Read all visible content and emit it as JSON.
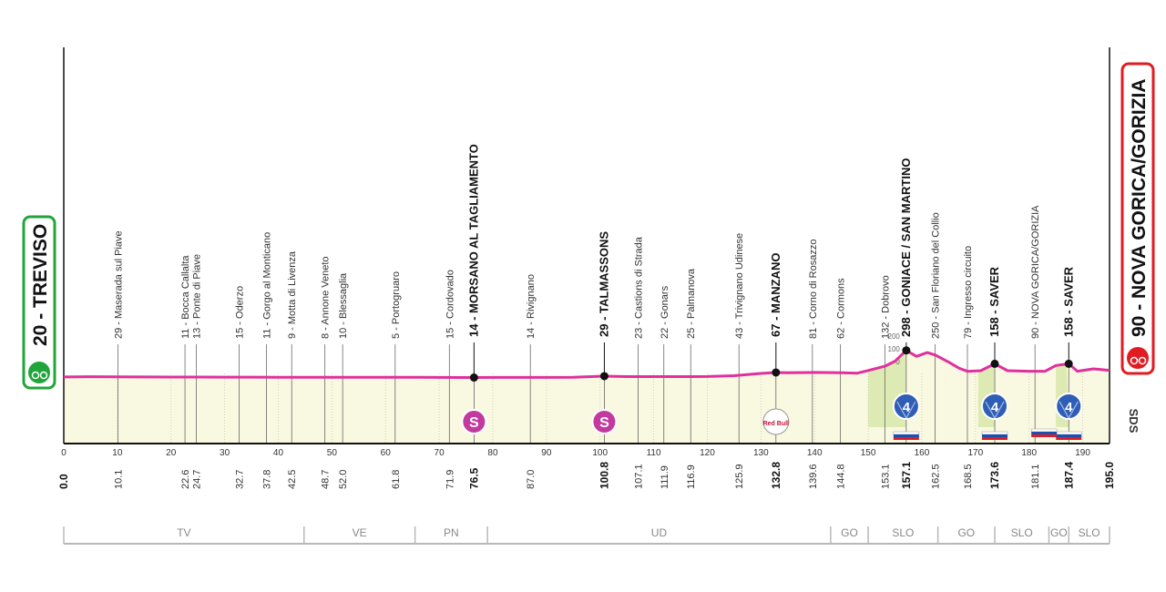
{
  "chart_data": {
    "type": "area",
    "x_unit": "km",
    "xlim": [
      0,
      195
    ],
    "x_ticks": [
      0,
      10,
      20,
      30,
      40,
      50,
      60,
      70,
      80,
      90,
      100,
      110,
      120,
      130,
      140,
      150,
      160,
      170,
      180,
      190
    ],
    "elevation_ticks": [
      "200",
      "100",
      "0"
    ],
    "colors": {
      "profile": "#e0309e",
      "fill": "#f9f8e1",
      "climb_fill": "#dce9b0",
      "finish_border": "#e11b22",
      "start_border": "#21a53a",
      "sprint": "#c23a9e",
      "kom": "#2f5eb7"
    },
    "start": {
      "label": "20 - TREVISO",
      "km": "0.0",
      "elevation": 20
    },
    "finish": {
      "label": "90 - NOVA GORICA/GORIZIA",
      "km": "195.0",
      "elevation": 90
    },
    "profile": [
      [
        0,
        20
      ],
      [
        5,
        23
      ],
      [
        10,
        21
      ],
      [
        15,
        20
      ],
      [
        20,
        19
      ],
      [
        25,
        19
      ],
      [
        30,
        18
      ],
      [
        35,
        18
      ],
      [
        40,
        17
      ],
      [
        45,
        17
      ],
      [
        50,
        17
      ],
      [
        55,
        17
      ],
      [
        60,
        16
      ],
      [
        65,
        16
      ],
      [
        70,
        15
      ],
      [
        76.5,
        14
      ],
      [
        80,
        15
      ],
      [
        85,
        15
      ],
      [
        90,
        15
      ],
      [
        95,
        17
      ],
      [
        100.8,
        29
      ],
      [
        105,
        24
      ],
      [
        110,
        24
      ],
      [
        115,
        24
      ],
      [
        120,
        25
      ],
      [
        125,
        33
      ],
      [
        130,
        57
      ],
      [
        132.8,
        67
      ],
      [
        135,
        64
      ],
      [
        140,
        68
      ],
      [
        145,
        64
      ],
      [
        148,
        60
      ],
      [
        150,
        88
      ],
      [
        153.1,
        132
      ],
      [
        155,
        185
      ],
      [
        157.1,
        298
      ],
      [
        159,
        235
      ],
      [
        161,
        275
      ],
      [
        162.5,
        250
      ],
      [
        165,
        175
      ],
      [
        167,
        110
      ],
      [
        168.5,
        79
      ],
      [
        171,
        86
      ],
      [
        173.6,
        158
      ],
      [
        176,
        86
      ],
      [
        180,
        80
      ],
      [
        183,
        80
      ],
      [
        185,
        140
      ],
      [
        187.4,
        158
      ],
      [
        189,
        80
      ],
      [
        192,
        105
      ],
      [
        195,
        90
      ]
    ],
    "places": [
      {
        "km": 10.1,
        "label": "29 - Maserada sul Piave",
        "km_label": "10.1"
      },
      {
        "km": 22.6,
        "label": "11 - Bocca Callalta",
        "km_label": "22.6"
      },
      {
        "km": 24.7,
        "label": "13 - Ponte di Piave",
        "km_label": "24.7"
      },
      {
        "km": 32.7,
        "label": "15 - Oderzo",
        "km_label": "32.7"
      },
      {
        "km": 37.8,
        "label": "11 - Gorgo al Monticano",
        "km_label": "37.8"
      },
      {
        "km": 42.5,
        "label": "9 - Motta di Livenza",
        "km_label": "42.5"
      },
      {
        "km": 48.7,
        "label": "8 - Annone Veneto",
        "km_label": "48.7"
      },
      {
        "km": 52.0,
        "label": "10 - Blessaglia",
        "km_label": "52.0"
      },
      {
        "km": 61.8,
        "label": "5 - Portogruaro",
        "km_label": "61.8"
      },
      {
        "km": 71.9,
        "label": "15 - Cordovado",
        "km_label": "71.9"
      },
      {
        "km": 76.5,
        "label": "14 - MORSANO AL TAGLIAMENTO",
        "km_label": "76.5",
        "bold": true,
        "marker": "sprint"
      },
      {
        "km": 87.0,
        "label": "14 - Rivignano",
        "km_label": "87.0"
      },
      {
        "km": 100.8,
        "label": "29 - TALMASSONS",
        "km_label": "100.8",
        "bold": true,
        "marker": "sprint"
      },
      {
        "km": 107.1,
        "label": "23 - Castions di Strada",
        "km_label": "107.1"
      },
      {
        "km": 111.9,
        "label": "22 - Gonars",
        "km_label": "111.9"
      },
      {
        "km": 116.9,
        "label": "25 - Palmanova",
        "km_label": "116.9"
      },
      {
        "km": 125.9,
        "label": "43 - Trivignano Udinese",
        "km_label": "125.9"
      },
      {
        "km": 132.8,
        "label": "67 - MANZANO",
        "km_label": "132.8",
        "bold": true,
        "marker": "redbull"
      },
      {
        "km": 139.6,
        "label": "81 - Corno di Rosazzo",
        "km_label": "139.6"
      },
      {
        "km": 144.8,
        "label": "62 - Cormons",
        "km_label": "144.8"
      },
      {
        "km": 153.1,
        "label": "132 - Dobrovo",
        "km_label": "153.1"
      },
      {
        "km": 157.1,
        "label": "298 - GONIACE / SAN MARTINO",
        "km_label": "157.1",
        "bold": true,
        "marker": "kom"
      },
      {
        "km": 162.5,
        "label": "250 - San Floriano del Collio",
        "km_label": "162.5"
      },
      {
        "km": 168.5,
        "label": "79 - Ingresso circuito",
        "km_label": "168.5"
      },
      {
        "km": 173.6,
        "label": "158 - SAVER",
        "km_label": "173.6",
        "bold": true,
        "marker": "kom"
      },
      {
        "km": 181.1,
        "label": "90 - NOVA GORICA/GORIZIA",
        "km_label": "181.1"
      },
      {
        "km": 187.4,
        "label": "158 - SAVER",
        "km_label": "187.4",
        "bold": true,
        "marker": "kom"
      }
    ],
    "markers": {
      "sprint": "S",
      "kom": "4",
      "redbull": "Red Bull"
    },
    "logo_text": "SDS",
    "regions": [
      {
        "name": "TV",
        "from": 0,
        "to": 44.8
      },
      {
        "name": "VE",
        "from": 44.8,
        "to": 65.5
      },
      {
        "name": "PN",
        "from": 65.5,
        "to": 79
      },
      {
        "name": "UD",
        "from": 79,
        "to": 143
      },
      {
        "name": "GO",
        "from": 143,
        "to": 150
      },
      {
        "name": "SLO",
        "from": 150,
        "to": 163
      },
      {
        "name": "GO",
        "from": 163,
        "to": 173.6
      },
      {
        "name": "SLO",
        "from": 173.6,
        "to": 183.7
      },
      {
        "name": "GO",
        "from": 183.7,
        "to": 187.4
      },
      {
        "name": "SLO",
        "from": 187.4,
        "to": 195
      }
    ]
  }
}
